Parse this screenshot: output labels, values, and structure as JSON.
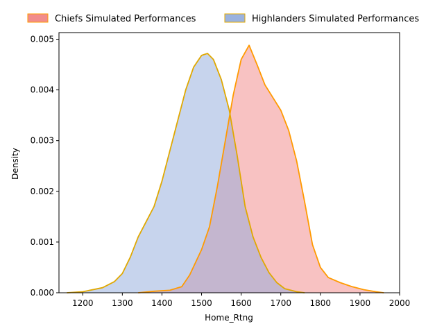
{
  "chart_data": {
    "type": "area",
    "title": "",
    "xlabel": "Home_Rtng",
    "ylabel": "Density",
    "xlim": [
      1140,
      2000
    ],
    "ylim": [
      0,
      0.00513
    ],
    "xticks": [
      1200,
      1300,
      1400,
      1500,
      1600,
      1700,
      1800,
      1900,
      2000
    ],
    "xtick_labels": [
      "1200",
      "1300",
      "1400",
      "1500",
      "1600",
      "1700",
      "1800",
      "1900",
      "2000"
    ],
    "yticks": [
      0,
      0.001,
      0.002,
      0.003,
      0.004,
      0.005
    ],
    "ytick_labels": [
      "0.000",
      "0.001",
      "0.002",
      "0.003",
      "0.004",
      "0.005"
    ],
    "grid": false,
    "legend_position": "top, outside plot",
    "series": [
      {
        "name": "Chiefs Simulated Performances",
        "fill_color": "#f08080",
        "fill_opacity": 0.48,
        "line_color": "#ff9a00",
        "points": [
          [
            1340,
            0.0
          ],
          [
            1380,
            3e-05
          ],
          [
            1420,
            5e-05
          ],
          [
            1450,
            0.00012
          ],
          [
            1470,
            0.00035
          ],
          [
            1500,
            0.00085
          ],
          [
            1520,
            0.0013
          ],
          [
            1540,
            0.0021
          ],
          [
            1560,
            0.003
          ],
          [
            1580,
            0.0039
          ],
          [
            1600,
            0.0046
          ],
          [
            1620,
            0.00488
          ],
          [
            1640,
            0.0045
          ],
          [
            1660,
            0.0041
          ],
          [
            1680,
            0.00385
          ],
          [
            1700,
            0.0036
          ],
          [
            1720,
            0.0032
          ],
          [
            1740,
            0.0026
          ],
          [
            1760,
            0.0018
          ],
          [
            1780,
            0.00095
          ],
          [
            1800,
            0.0005
          ],
          [
            1820,
            0.0003
          ],
          [
            1850,
            0.0002
          ],
          [
            1880,
            0.00012
          ],
          [
            1910,
            6e-05
          ],
          [
            1940,
            2e-05
          ],
          [
            1960,
            0.0
          ]
        ]
      },
      {
        "name": "Highlanders Simulated Performances",
        "fill_color": "#8faadc",
        "fill_opacity": 0.5,
        "line_color": "#e0a800",
        "points": [
          [
            1160,
            0.0
          ],
          [
            1200,
            2e-05
          ],
          [
            1250,
            0.0001
          ],
          [
            1280,
            0.00022
          ],
          [
            1300,
            0.00038
          ],
          [
            1320,
            0.0007
          ],
          [
            1340,
            0.0011
          ],
          [
            1360,
            0.0014
          ],
          [
            1380,
            0.0017
          ],
          [
            1400,
            0.0022
          ],
          [
            1420,
            0.0028
          ],
          [
            1440,
            0.0034
          ],
          [
            1460,
            0.004
          ],
          [
            1480,
            0.00445
          ],
          [
            1500,
            0.00468
          ],
          [
            1515,
            0.00472
          ],
          [
            1530,
            0.0046
          ],
          [
            1550,
            0.0042
          ],
          [
            1570,
            0.0036
          ],
          [
            1590,
            0.0027
          ],
          [
            1610,
            0.0017
          ],
          [
            1630,
            0.0011
          ],
          [
            1650,
            0.0007
          ],
          [
            1670,
            0.0004
          ],
          [
            1690,
            0.0002
          ],
          [
            1710,
            8e-05
          ],
          [
            1740,
            2e-05
          ],
          [
            1760,
            0.0
          ]
        ]
      }
    ]
  }
}
